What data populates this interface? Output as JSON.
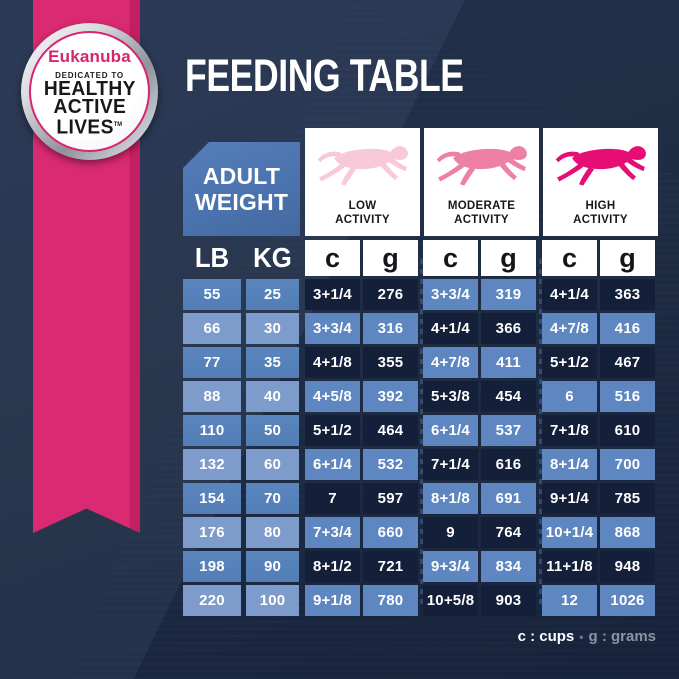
{
  "title": "FEEDING TABLE",
  "badge": {
    "brand": "Eukanuba",
    "tagline": "DEDICATED TO",
    "line1": "HEALTHY",
    "line2": "ACTIVE",
    "line3": "LIVES",
    "trademark": "TM"
  },
  "table": {
    "corner_header": {
      "line1": "ADULT",
      "line2": "WEIGHT"
    },
    "activity_groups": [
      {
        "line1": "LOW",
        "line2": "ACTIVITY",
        "icon": "running-dog-icon"
      },
      {
        "line1": "MODERATE",
        "line2": "ACTIVITY",
        "icon": "running-dog-icon"
      },
      {
        "line1": "HIGH",
        "line2": "ACTIVITY",
        "icon": "running-dog-icon"
      }
    ],
    "unit_headers": {
      "lb": "LB",
      "kg": "KG",
      "cups": "c",
      "grams": "g"
    }
  },
  "legend": {
    "cups": "c : cups",
    "separator": "•",
    "grams": "g : grams"
  },
  "colors": {
    "brand_pink": "#d7256f",
    "navy_background": "#1f2d49",
    "header_blue": "#4a72ae",
    "weight_cell_odd": "#5480b9",
    "weight_cell_even": "#7e9ccb",
    "amount_cell_blue": "#5e87c2",
    "amount_cell_dark": "#141f3a",
    "low_dog": "#f8c9d9",
    "moderate_dog": "#ee7fa5",
    "high_dog": "#e60d75"
  },
  "chart_data": {
    "type": "table",
    "title": "FEEDING TABLE",
    "column_groups": [
      "ADULT WEIGHT",
      "LOW ACTIVITY",
      "MODERATE ACTIVITY",
      "HIGH ACTIVITY"
    ],
    "columns": [
      "LB",
      "KG",
      "LOW c (cups)",
      "LOW g (grams)",
      "MODERATE c (cups)",
      "MODERATE g (grams)",
      "HIGH c (cups)",
      "HIGH g (grams)"
    ],
    "rows": [
      [
        "55",
        "25",
        "3+1/4",
        "276",
        "3+3/4",
        "319",
        "4+1/4",
        "363"
      ],
      [
        "66",
        "30",
        "3+3/4",
        "316",
        "4+1/4",
        "366",
        "4+7/8",
        "416"
      ],
      [
        "77",
        "35",
        "4+1/8",
        "355",
        "4+7/8",
        "411",
        "5+1/2",
        "467"
      ],
      [
        "88",
        "40",
        "4+5/8",
        "392",
        "5+3/8",
        "454",
        "6",
        "516"
      ],
      [
        "110",
        "50",
        "5+1/2",
        "464",
        "6+1/4",
        "537",
        "7+1/8",
        "610"
      ],
      [
        "132",
        "60",
        "6+1/4",
        "532",
        "7+1/4",
        "616",
        "8+1/4",
        "700"
      ],
      [
        "154",
        "70",
        "7",
        "597",
        "8+1/8",
        "691",
        "9+1/4",
        "785"
      ],
      [
        "176",
        "80",
        "7+3/4",
        "660",
        "9",
        "764",
        "10+1/4",
        "868"
      ],
      [
        "198",
        "90",
        "8+1/2",
        "721",
        "9+3/4",
        "834",
        "11+1/8",
        "948"
      ],
      [
        "220",
        "100",
        "9+1/8",
        "780",
        "10+5/8",
        "903",
        "12",
        "1026"
      ]
    ],
    "legend": "c : cups  •  g : grams"
  }
}
